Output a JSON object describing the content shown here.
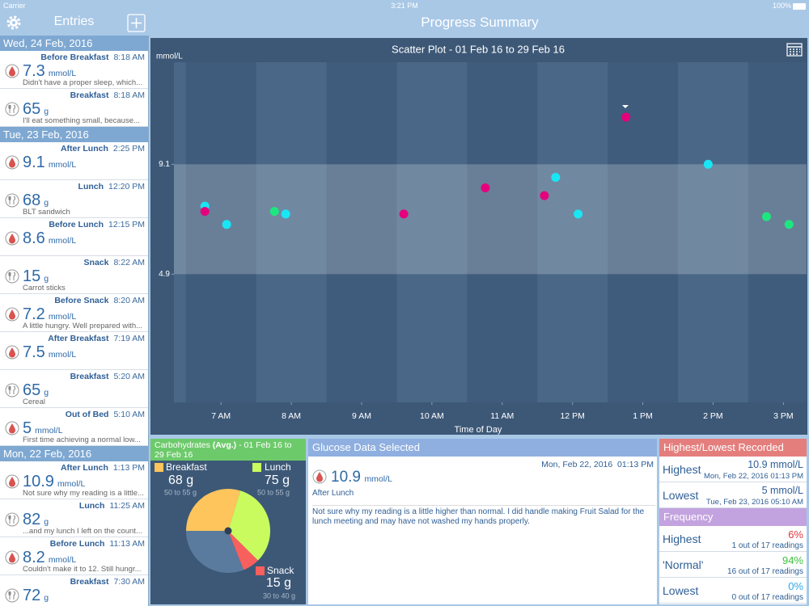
{
  "status_bar": {
    "carrier": "Carrier",
    "time": "3:21 PM",
    "battery": "100%"
  },
  "sidebar": {
    "title": "Entries",
    "groups": [
      {
        "date": "Wed, 24 Feb, 2016",
        "entries": [
          {
            "label": "Before Breakfast",
            "time": "8:18 AM",
            "icon": "drop",
            "value": 7.3,
            "unit": "mmol/L",
            "note": "Didn't have a proper sleep, which..."
          },
          {
            "label": "Breakfast",
            "time": "8:18 AM",
            "icon": "meal",
            "value": 65,
            "unit": "g",
            "note": "I'll eat something small, because..."
          }
        ]
      },
      {
        "date": "Tue, 23 Feb, 2016",
        "entries": [
          {
            "label": "After Lunch",
            "time": "2:25 PM",
            "icon": "drop",
            "value": 9.1,
            "unit": "mmol/L"
          },
          {
            "label": "Lunch",
            "time": "12:20 PM",
            "icon": "meal",
            "value": 68,
            "unit": "g",
            "note": "BLT sandwich"
          },
          {
            "label": "Before Lunch",
            "time": "12:15 PM",
            "icon": "drop",
            "value": 8.6,
            "unit": "mmol/L"
          },
          {
            "label": "Snack",
            "time": "8:22 AM",
            "icon": "meal",
            "value": 15,
            "unit": "g",
            "note": "Carrot sticks"
          },
          {
            "label": "Before Snack",
            "time": "8:20 AM",
            "icon": "drop",
            "value": 7.2,
            "unit": "mmol/L",
            "note": "A little hungry. Well prepared with..."
          },
          {
            "label": "After Breakfast",
            "time": "7:19 AM",
            "icon": "drop",
            "value": 7.5,
            "unit": "mmol/L"
          },
          {
            "label": "Breakfast",
            "time": "5:20 AM",
            "icon": "meal",
            "value": 65,
            "unit": "g",
            "note": "Cereal"
          },
          {
            "label": "Out of Bed",
            "time": "5:10 AM",
            "icon": "drop",
            "value": 5,
            "unit": "mmol/L",
            "note": "First time achieving a normal low..."
          }
        ]
      },
      {
        "date": "Mon, 22 Feb, 2016",
        "entries": [
          {
            "label": "After Lunch",
            "time": "1:13 PM",
            "icon": "drop",
            "value": 10.9,
            "unit": "mmol/L",
            "note": "Not sure why my reading is a little..."
          },
          {
            "label": "Lunch",
            "time": "11:25 AM",
            "icon": "meal",
            "value": 82,
            "unit": "g",
            "note": "...and my lunch I left on the count..."
          },
          {
            "label": "Before Lunch",
            "time": "11:13 AM",
            "icon": "drop",
            "value": 8.2,
            "unit": "mmol/L",
            "note": "Couldn't make it to 12. Still hungr..."
          },
          {
            "label": "Breakfast",
            "time": "7:30 AM",
            "icon": "meal",
            "value": 72,
            "unit": "g"
          }
        ]
      }
    ]
  },
  "header": {
    "title": "Progress Summary"
  },
  "chart_data": [
    {
      "type": "scatter",
      "title": "Scatter Plot - 01 Feb 16 to 29 Feb 16",
      "y_label": "mmol/L",
      "x_label": "Time of Day",
      "xlim": [
        6.33,
        15.33
      ],
      "xticks": [
        {
          "value": 7,
          "label": "7 AM"
        },
        {
          "value": 8,
          "label": "8 AM"
        },
        {
          "value": 9,
          "label": "9 AM"
        },
        {
          "value": 10,
          "label": "10 AM"
        },
        {
          "value": 11,
          "label": "11 AM"
        },
        {
          "value": 12,
          "label": "12 PM"
        },
        {
          "value": 13,
          "label": "1 PM"
        },
        {
          "value": 14,
          "label": "2 PM"
        },
        {
          "value": 15,
          "label": "3 PM"
        }
      ],
      "ylim": [
        0,
        13
      ],
      "yticks": [
        4.9,
        9.1
      ],
      "series": [
        {
          "color": "#19e6f5",
          "x": [
            6.77,
            7.08,
            7.92,
            11.76,
            12.08,
            13.93
          ],
          "values": [
            7.5,
            6.8,
            7.2,
            8.6,
            7.2,
            9.1
          ]
        },
        {
          "color": "#1ee67e",
          "x": [
            7.76,
            14.76,
            15.08
          ],
          "values": [
            7.3,
            7.1,
            6.8
          ]
        },
        {
          "color": "#e5007d",
          "x": [
            6.77,
            9.6,
            10.76,
            11.6,
            12.76
          ],
          "values": [
            7.3,
            7.2,
            8.2,
            7.9,
            10.9
          ]
        }
      ]
    },
    {
      "type": "pie",
      "title": "Carbohydrates",
      "title_note": "(Avg.)",
      "subtitle": "- 01 Feb 16 to 29 Feb 16",
      "categories": [
        "Breakfast",
        "Lunch",
        "Snack",
        null
      ],
      "values": [
        68,
        75,
        15,
        71
      ],
      "value_labels": [
        "68 g",
        "75 g",
        "15 g",
        null
      ],
      "ranges": [
        "50 to 55 g",
        "50 to 55 g",
        "30 to 40 g",
        null
      ],
      "colors": [
        "#fec55c",
        "#c9fb5e",
        "#f8605e",
        "#5a7a9e"
      ]
    }
  ],
  "glucose_panel": {
    "title": "Glucose Data Selected",
    "datetime": "Mon, Feb 22, 2016  01:13 PM",
    "value": 10.9,
    "unit": "mmol/L",
    "label": "After Lunch",
    "note": "Not sure why my reading is a little higher than normal. I did handle making Fruit Salad for the lunch meeting and may have not washed my hands properly."
  },
  "records": {
    "title": "Highest/Lowest Recorded",
    "rows": [
      {
        "label": "Highest",
        "value": "10.9 mmol/L",
        "date": "Mon, Feb 22, 2016 01:13 PM"
      },
      {
        "label": "Lowest",
        "value": "5 mmol/L",
        "date": "Tue, Feb 23, 2016 05:10 AM"
      }
    ]
  },
  "frequency": {
    "title": "Frequency",
    "rows": [
      {
        "label": "Highest",
        "percent": "6%",
        "count": "1 out of 17 readings",
        "color": "#e0393e"
      },
      {
        "label": "'Normal'",
        "percent": "94%",
        "count": "16 out of 17 readings",
        "color": "#3cc23c"
      },
      {
        "label": "Lowest",
        "percent": "0%",
        "count": "0 out of 17 readings",
        "color": "#2fa8e8"
      }
    ]
  }
}
